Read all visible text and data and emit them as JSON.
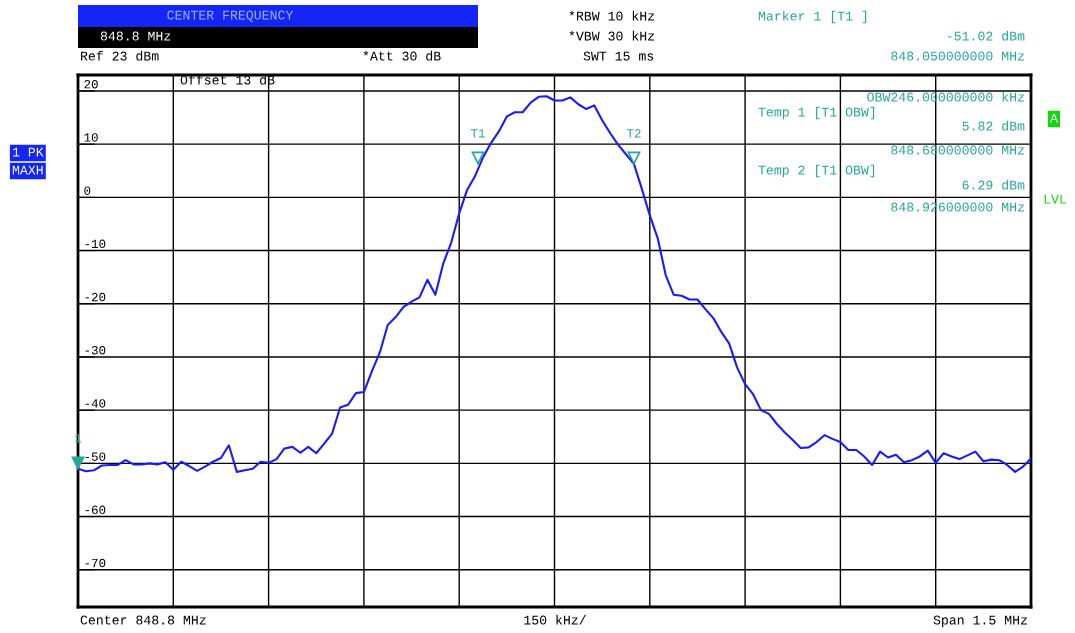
{
  "chart_data": {
    "type": "line",
    "categories": [
      null,
      null,
      null,
      null,
      null,
      null,
      null,
      null,
      null,
      null,
      null,
      null,
      null,
      null,
      null,
      null,
      null,
      null,
      null,
      null,
      null,
      null,
      null,
      null,
      null,
      null,
      null,
      null,
      null,
      null,
      null,
      null,
      null,
      null,
      null,
      null,
      null,
      null,
      null,
      null,
      null,
      null,
      null,
      null,
      null,
      null,
      null,
      null,
      null,
      null,
      null,
      null,
      null,
      null,
      null,
      null,
      null,
      null,
      null,
      null,
      null,
      null,
      null,
      null,
      null,
      null,
      null,
      null,
      null,
      null,
      null,
      null,
      null,
      null,
      null,
      null,
      null,
      null,
      null,
      null,
      null,
      null,
      null,
      null,
      null,
      null,
      null,
      null,
      null,
      null,
      null,
      null,
      null,
      null,
      null,
      null,
      null,
      null,
      null,
      null,
      null,
      null,
      null,
      null,
      null,
      null,
      null,
      null,
      null,
      null,
      null,
      null,
      null,
      null,
      null,
      null,
      null,
      null,
      null,
      null,
      null
    ],
    "series": [
      {
        "color": "#1a1aff",
        "values": [
          -51,
          -51.5,
          -51.3,
          -50.4,
          -50.3,
          -50.3,
          -49.4,
          -50.2,
          -50.2,
          -50,
          -50.2,
          -49.8,
          -51.2,
          -49.7,
          -50.5,
          -51.4,
          -50.6,
          -49.7,
          -49,
          -46.6,
          -51.6,
          -51.3,
          -51,
          -49.7,
          -49.9,
          -49.2,
          -47.2,
          -46.9,
          -48,
          -46.9,
          -48.1,
          -46.3,
          -44.4,
          -39.5,
          -39,
          -36.8,
          -36.6,
          -32.7,
          -29.2,
          -24,
          -22.5,
          -20.6,
          -19.6,
          -18.8,
          -15.5,
          -18.3,
          -12.4,
          -8.5,
          -3,
          1.4,
          4,
          7.5,
          10.2,
          12.4,
          15.2,
          16,
          16,
          17.8,
          18.9,
          19,
          18.2,
          18.2,
          18.8,
          17.5,
          16.6,
          17.3,
          14.5,
          12.1,
          9.9,
          8.1,
          6.3,
          1.6,
          -3.4,
          -7.7,
          -14.6,
          -18.3,
          -18.5,
          -19.2,
          -19.2,
          -21,
          -22.7,
          -25.3,
          -27.5,
          -32,
          -35.1,
          -37,
          -40,
          -40.7,
          -42.6,
          -44.2,
          -45.6,
          -47.1,
          -47,
          -46,
          -44.7,
          -45.4,
          -46,
          -47.5,
          -47.5,
          -48.7,
          -50.3,
          -47.8,
          -48.9,
          -48.4,
          -49.8,
          -49.4,
          -48.7,
          -47.6,
          -49.9,
          -48.1,
          -48.7,
          -49.2,
          -48.5,
          -47.8,
          -49.6,
          -49.3,
          -49.4,
          -50.3,
          -51.6,
          -50.6,
          -49.1
        ]
      }
    ],
    "ylim": [
      -77,
      23
    ],
    "yticks": [
      20,
      10,
      0,
      -10,
      -20,
      -30,
      -40,
      -50,
      -60,
      -70
    ],
    "tick_labels": "y",
    "grid": true,
    "marker": "none",
    "line_style": "solid",
    "annotations": [
      "CENTER FREQUENCY",
      "848.8 MHz",
      "Ref 23 dBm",
      "*Att 30 dB",
      "*RBW 10 kHz",
      "*VBW 30 kHz",
      "SWT 15 ms",
      "Marker 1 [T1 ]",
      "-51.02 dBm",
      "848.050000000 MHz",
      "Offset 13 dB",
      "OBW246.000000000 kHz",
      "Temp 1 [T1 OBW]",
      "5.82 dBm",
      "848.680000000 MHz",
      "Temp 2 [T1 OBW]",
      "6.29 dBm",
      "848.926000000 MHz",
      "1 PK",
      "MAXH",
      "A",
      "LVL",
      "Center 848.8 MHz",
      "150 kHz/",
      "Span 1.5 MHz",
      "1",
      "T1",
      "T2"
    ]
  }
}
